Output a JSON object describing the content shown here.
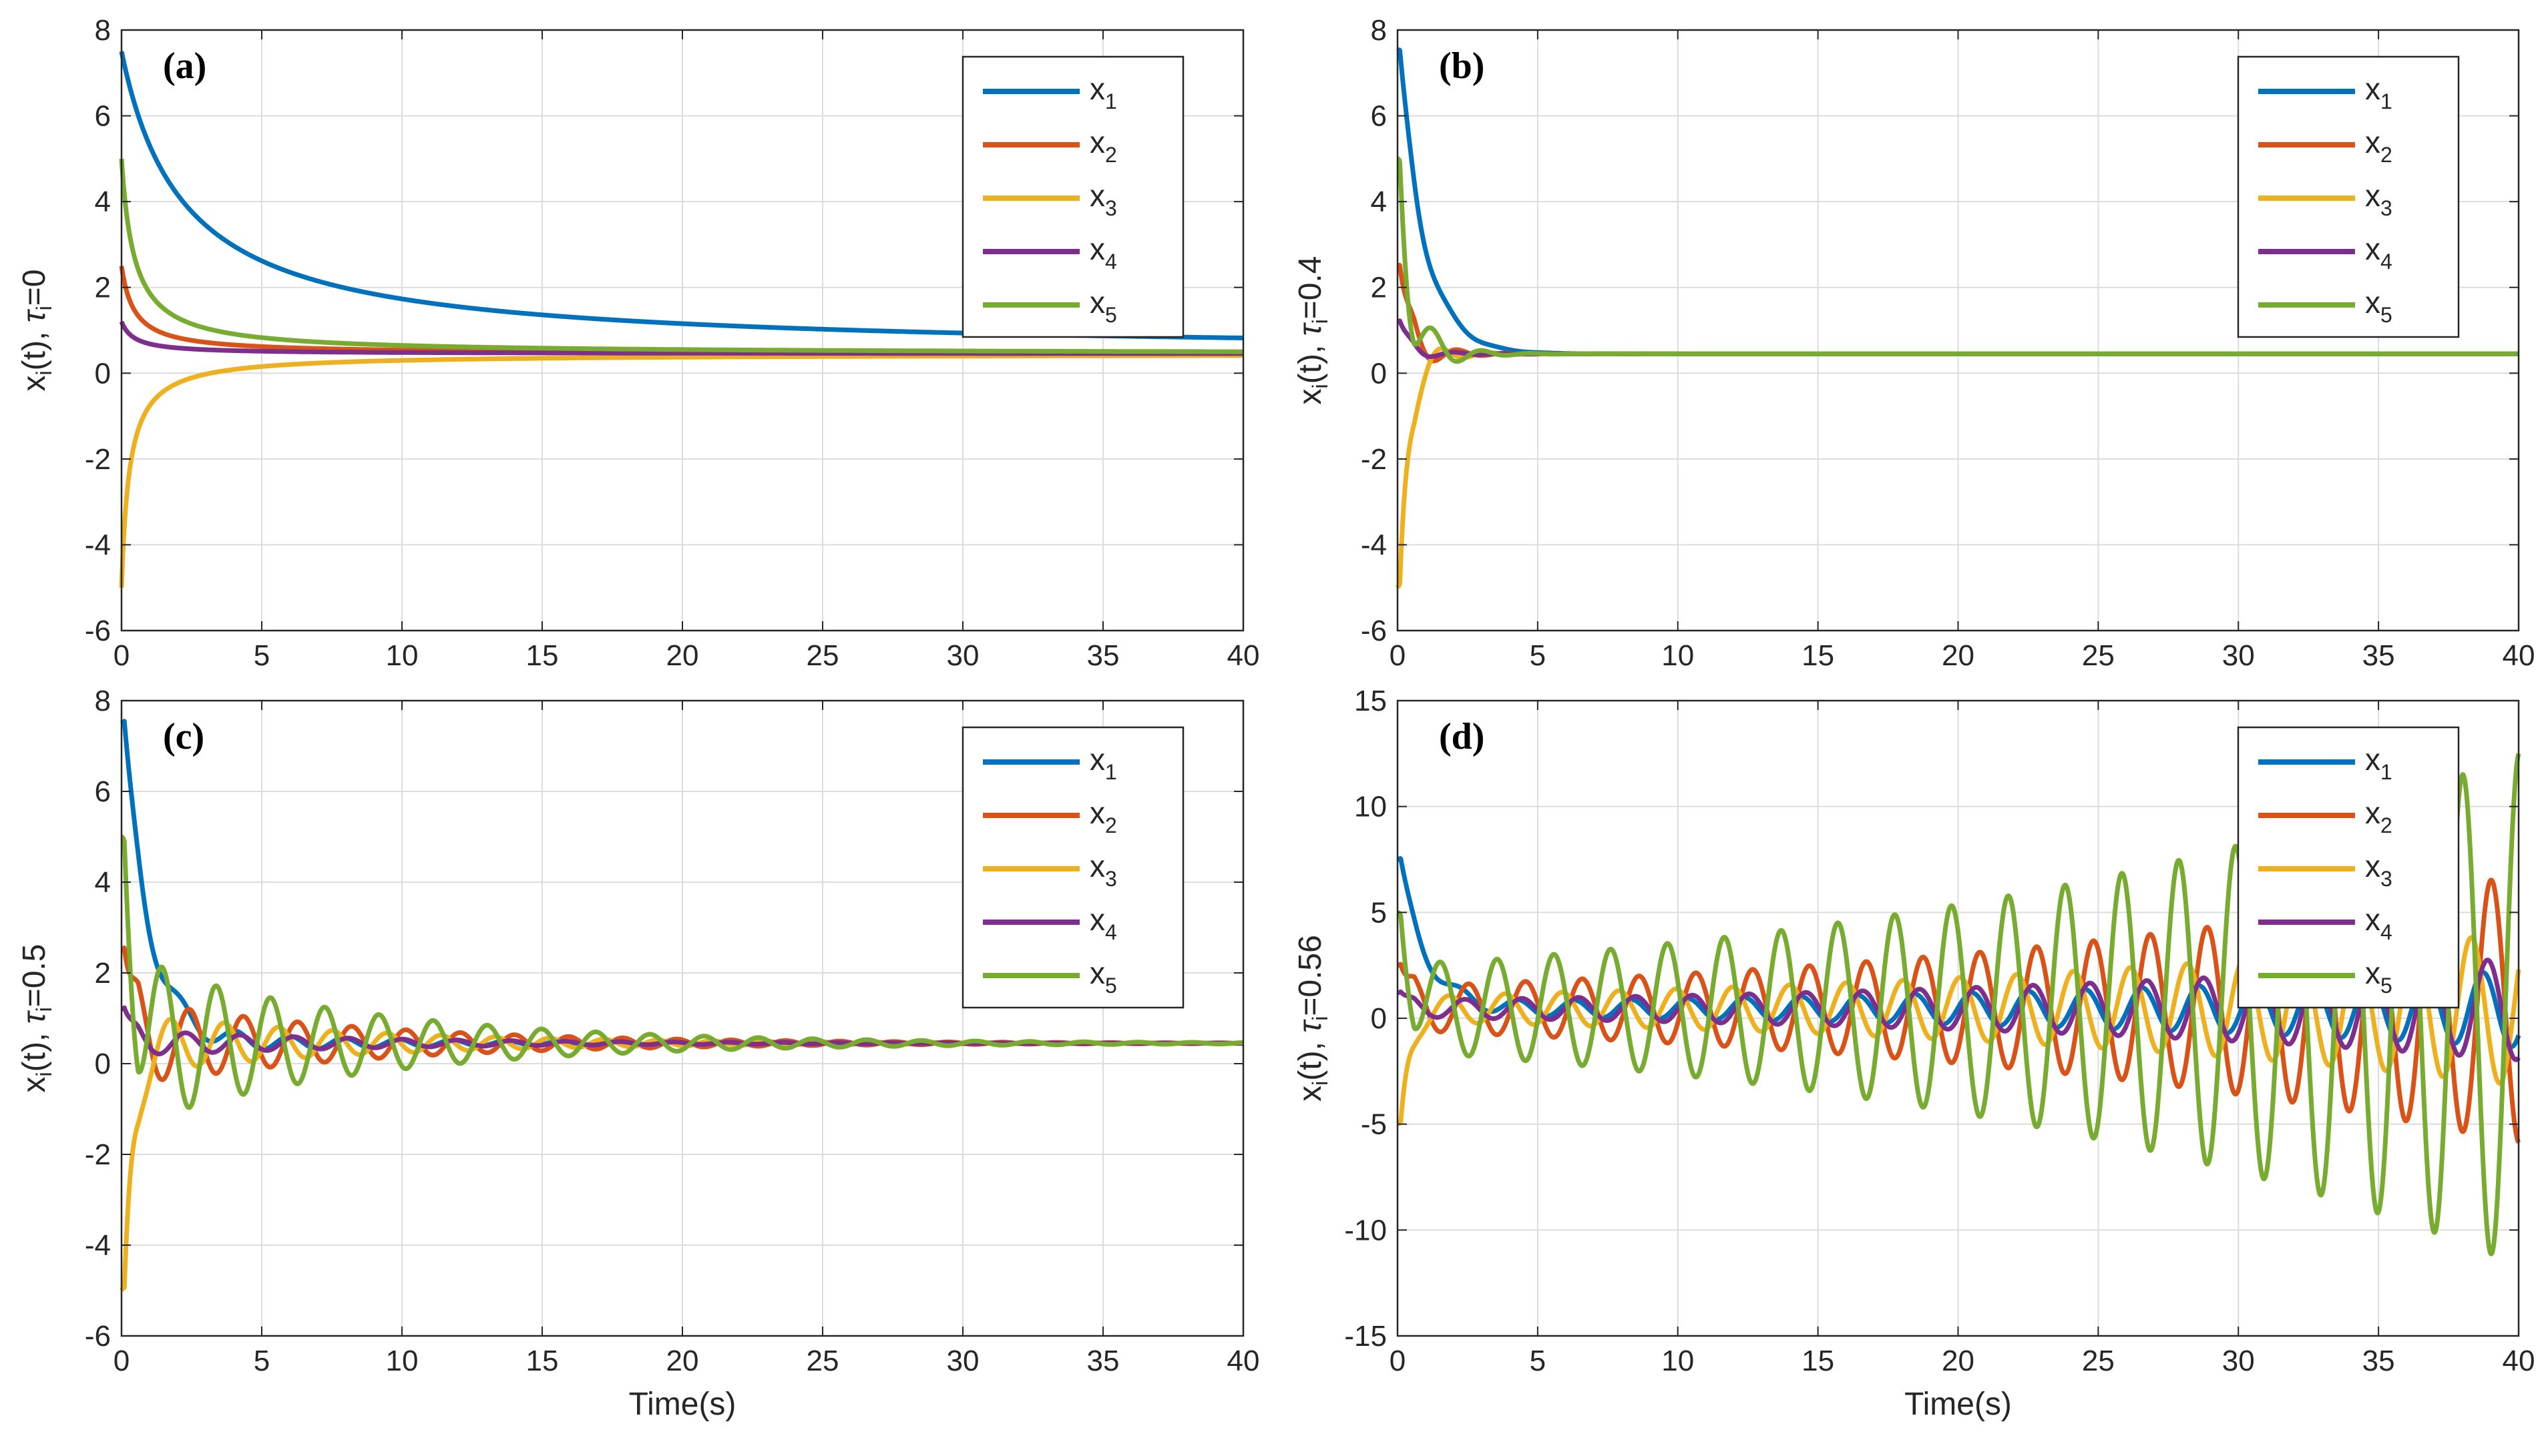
{
  "colors": {
    "x1": "#0072BD",
    "x2": "#D95319",
    "x3": "#EDB120",
    "x4": "#7E2F8E",
    "x5": "#77AC30"
  },
  "chart_data": [
    {
      "type": "line",
      "panel_label": "(a)",
      "ylabel_text": "x",
      "ylabel_sub": "i",
      "ylabel_mid": "(t), ",
      "ylabel_tau": "τ",
      "ylabel_tau_sub": "i",
      "ylabel_tail": "=0",
      "xlabel": "",
      "xlim": [
        0,
        40
      ],
      "ylim": [
        -6,
        8
      ],
      "xticks": [
        0,
        5,
        10,
        15,
        20,
        25,
        30,
        35,
        40
      ],
      "yticks": [
        -6,
        -4,
        -2,
        0,
        2,
        4,
        6,
        8
      ],
      "tau": 0,
      "legend_position": "top-right",
      "series": [
        {
          "name": "x",
          "sub": "1",
          "initial": 7.5,
          "final": 0.45,
          "osc_amp": 0,
          "osc_freq": 0,
          "osc_growth": 0
        },
        {
          "name": "x",
          "sub": "2",
          "initial": 2.5,
          "final": 0.45,
          "osc_amp": 0,
          "osc_freq": 0,
          "osc_growth": 0
        },
        {
          "name": "x",
          "sub": "3",
          "initial": -5,
          "final": 0.45,
          "osc_amp": 0,
          "osc_freq": 0,
          "osc_growth": 0
        },
        {
          "name": "x",
          "sub": "4",
          "initial": 1.2,
          "final": 0.45,
          "osc_amp": 0,
          "osc_freq": 0,
          "osc_growth": 0
        },
        {
          "name": "x",
          "sub": "5",
          "initial": 5,
          "final": 0.45,
          "osc_amp": 0,
          "osc_freq": 0,
          "osc_growth": 0
        }
      ]
    },
    {
      "type": "line",
      "panel_label": "(b)",
      "ylabel_text": "x",
      "ylabel_sub": "i",
      "ylabel_mid": "(t), ",
      "ylabel_tau": "τ",
      "ylabel_tau_sub": "i",
      "ylabel_tail": "=0.4",
      "xlabel": "",
      "xlim": [
        0,
        40
      ],
      "ylim": [
        -6,
        8
      ],
      "xticks": [
        0,
        5,
        10,
        15,
        20,
        25,
        30,
        35,
        40
      ],
      "yticks": [
        -6,
        -4,
        -2,
        0,
        2,
        4,
        6,
        8
      ],
      "tau": 0.4,
      "legend_position": "top-right",
      "series": [
        {
          "name": "x",
          "sub": "1",
          "initial": 7.5,
          "final": 0.45,
          "osc_amp": 0.4,
          "osc_freq": 3.6,
          "osc_growth": -1.0
        },
        {
          "name": "x",
          "sub": "2",
          "initial": 2.5,
          "final": 0.45,
          "osc_amp": 0.8,
          "osc_freq": 3.6,
          "osc_growth": -1.0
        },
        {
          "name": "x",
          "sub": "3",
          "initial": -5,
          "final": 0.45,
          "osc_amp": 0.9,
          "osc_freq": 3.6,
          "osc_growth": -1.0
        },
        {
          "name": "x",
          "sub": "4",
          "initial": 1.2,
          "final": 0.45,
          "osc_amp": 0.3,
          "osc_freq": 3.6,
          "osc_growth": -1.0
        },
        {
          "name": "x",
          "sub": "5",
          "initial": 5,
          "final": 0.45,
          "osc_amp": 1.6,
          "osc_freq": 3.6,
          "osc_growth": -1.0
        }
      ]
    },
    {
      "type": "line",
      "panel_label": "(c)",
      "ylabel_text": "x",
      "ylabel_sub": "i",
      "ylabel_mid": "(t), ",
      "ylabel_tau": "τ",
      "ylabel_tau_sub": "i",
      "ylabel_tail": "=0.5",
      "xlabel": "Time(s)",
      "xlim": [
        0,
        40
      ],
      "ylim": [
        -6,
        8
      ],
      "xticks": [
        0,
        5,
        10,
        15,
        20,
        25,
        30,
        35,
        40
      ],
      "yticks": [
        -6,
        -4,
        -2,
        0,
        2,
        4,
        6,
        8
      ],
      "tau": 0.5,
      "legend_position": "top-right",
      "series": [
        {
          "name": "x",
          "sub": "1",
          "initial": 7.5,
          "final": 0.45,
          "osc_amp": 0.3,
          "osc_freq": 3.25,
          "osc_growth": -0.12
        },
        {
          "name": "x",
          "sub": "2",
          "initial": 2.5,
          "final": 0.45,
          "osc_amp": 1.0,
          "osc_freq": 3.25,
          "osc_growth": -0.12
        },
        {
          "name": "x",
          "sub": "3",
          "initial": -5,
          "final": 0.45,
          "osc_amp": 0.7,
          "osc_freq": 3.25,
          "osc_growth": -0.12
        },
        {
          "name": "x",
          "sub": "4",
          "initial": 1.2,
          "final": 0.45,
          "osc_amp": 0.3,
          "osc_freq": 3.25,
          "osc_growth": -0.12
        },
        {
          "name": "x",
          "sub": "5",
          "initial": 5,
          "final": 0.45,
          "osc_amp": 1.9,
          "osc_freq": 3.25,
          "osc_growth": -0.12
        }
      ]
    },
    {
      "type": "line",
      "panel_label": "(d)",
      "ylabel_text": "x",
      "ylabel_sub": "i",
      "ylabel_mid": "(t), ",
      "ylabel_tau": "τ",
      "ylabel_tau_sub": "i",
      "ylabel_tail": "=0.56",
      "xlabel": "Time(s)",
      "xlim": [
        0,
        40
      ],
      "ylim": [
        -15,
        15
      ],
      "xticks": [
        0,
        5,
        10,
        15,
        20,
        25,
        30,
        35,
        40
      ],
      "yticks": [
        -15,
        -10,
        -5,
        0,
        5,
        10,
        15
      ],
      "tau": 0.56,
      "legend_position": "top-right",
      "series": [
        {
          "name": "x",
          "sub": "1",
          "initial": 7.5,
          "final": 0.45,
          "osc_amp": 0.3,
          "osc_freq": 3.1,
          "osc_growth": 0.045
        },
        {
          "name": "x",
          "sub": "2",
          "initial": 2.5,
          "final": 0.45,
          "osc_amp": 1.05,
          "osc_freq": 3.1,
          "osc_growth": 0.045
        },
        {
          "name": "x",
          "sub": "3",
          "initial": -5,
          "final": 0.45,
          "osc_amp": 0.6,
          "osc_freq": 3.1,
          "osc_growth": 0.045
        },
        {
          "name": "x",
          "sub": "4",
          "initial": 1.2,
          "final": 0.45,
          "osc_amp": 0.4,
          "osc_freq": 3.1,
          "osc_growth": 0.045
        },
        {
          "name": "x",
          "sub": "5",
          "initial": 5,
          "final": 0.45,
          "osc_amp": 2.0,
          "osc_freq": 3.1,
          "osc_growth": 0.045
        }
      ]
    }
  ]
}
